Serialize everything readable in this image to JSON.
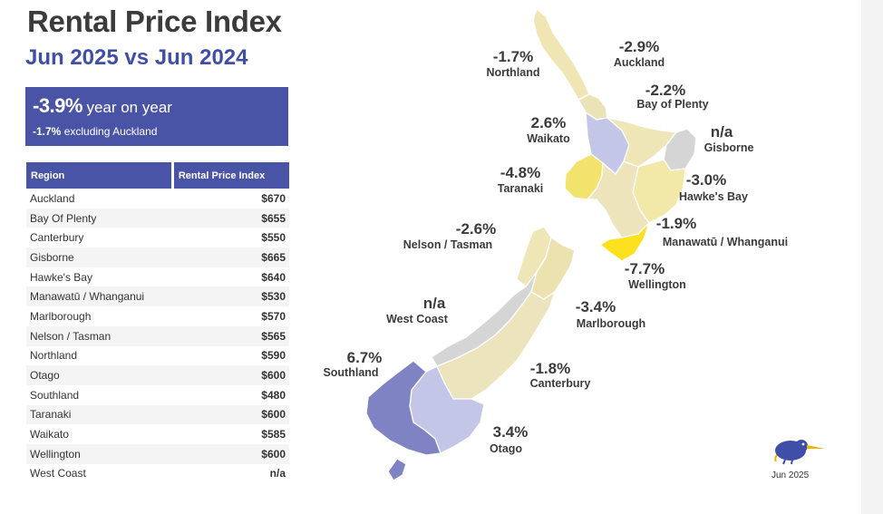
{
  "title": "Rental Price Index",
  "subtitle": "Jun 2025 vs Jun 2024",
  "summary": {
    "yoy_value": "-3.9%",
    "yoy_label": "year on year",
    "ex_value": "-1.7%",
    "ex_label": "excluding Auckland"
  },
  "table": {
    "headers": [
      "Region",
      "Rental Price Index"
    ],
    "rows": [
      {
        "region": "Auckland",
        "value": "$670"
      },
      {
        "region": "Bay Of Plenty",
        "value": "$655"
      },
      {
        "region": "Canterbury",
        "value": "$550"
      },
      {
        "region": "Gisborne",
        "value": "$665"
      },
      {
        "region": "Hawke's Bay",
        "value": "$640"
      },
      {
        "region": "Manawatū / Whanganui",
        "value": "$530"
      },
      {
        "region": "Marlborough",
        "value": "$570"
      },
      {
        "region": "Nelson / Tasman",
        "value": "$565"
      },
      {
        "region": "Northland",
        "value": "$590"
      },
      {
        "region": "Otago",
        "value": "$600"
      },
      {
        "region": "Southland",
        "value": "$480"
      },
      {
        "region": "Taranaki",
        "value": "$600"
      },
      {
        "region": "Waikato",
        "value": "$585"
      },
      {
        "region": "Wellington",
        "value": "$600"
      },
      {
        "region": "West Coast",
        "value": "n/a"
      }
    ]
  },
  "map": {
    "regions": [
      {
        "key": "northland",
        "name": "Northland",
        "change": "-1.7%"
      },
      {
        "key": "auckland",
        "name": "Auckland",
        "change": "-2.9%"
      },
      {
        "key": "bay_of_plenty",
        "name": "Bay of Plenty",
        "change": "-2.2%"
      },
      {
        "key": "waikato",
        "name": "Waikato",
        "change": "2.6%"
      },
      {
        "key": "gisborne",
        "name": "Gisborne",
        "change": "n/a"
      },
      {
        "key": "taranaki",
        "name": "Taranaki",
        "change": "-4.8%"
      },
      {
        "key": "hawkes_bay",
        "name": "Hawke's Bay",
        "change": "-3.0%"
      },
      {
        "key": "manawatu",
        "name": "Manawatū / Whanganui",
        "change": "-1.9%"
      },
      {
        "key": "nelson",
        "name": "Nelson / Tasman",
        "change": "-2.6%"
      },
      {
        "key": "wellington",
        "name": "Wellington",
        "change": "-7.7%"
      },
      {
        "key": "west_coast",
        "name": "West Coast",
        "change": "n/a"
      },
      {
        "key": "marlborough",
        "name": "Marlborough",
        "change": "-3.4%"
      },
      {
        "key": "southland",
        "name": "Southland",
        "change": "6.7%"
      },
      {
        "key": "canterbury",
        "name": "Canterbury",
        "change": "-1.8%"
      },
      {
        "key": "otago",
        "name": "Otago",
        "change": "3.4%"
      }
    ]
  },
  "footer": {
    "month": "Jun 2025",
    "logo_icon": "kiwi-bird-icon"
  },
  "colors": {
    "accent": "#4a54a6",
    "title": "#3b3b3b",
    "subtitle": "#3f4ea8",
    "no_data": "#d5d5d5",
    "negative_light": "#efe6b4",
    "negative_strong": "#fde11f",
    "positive_light": "#c3c6e6",
    "positive_strong": "#7f83c3"
  }
}
